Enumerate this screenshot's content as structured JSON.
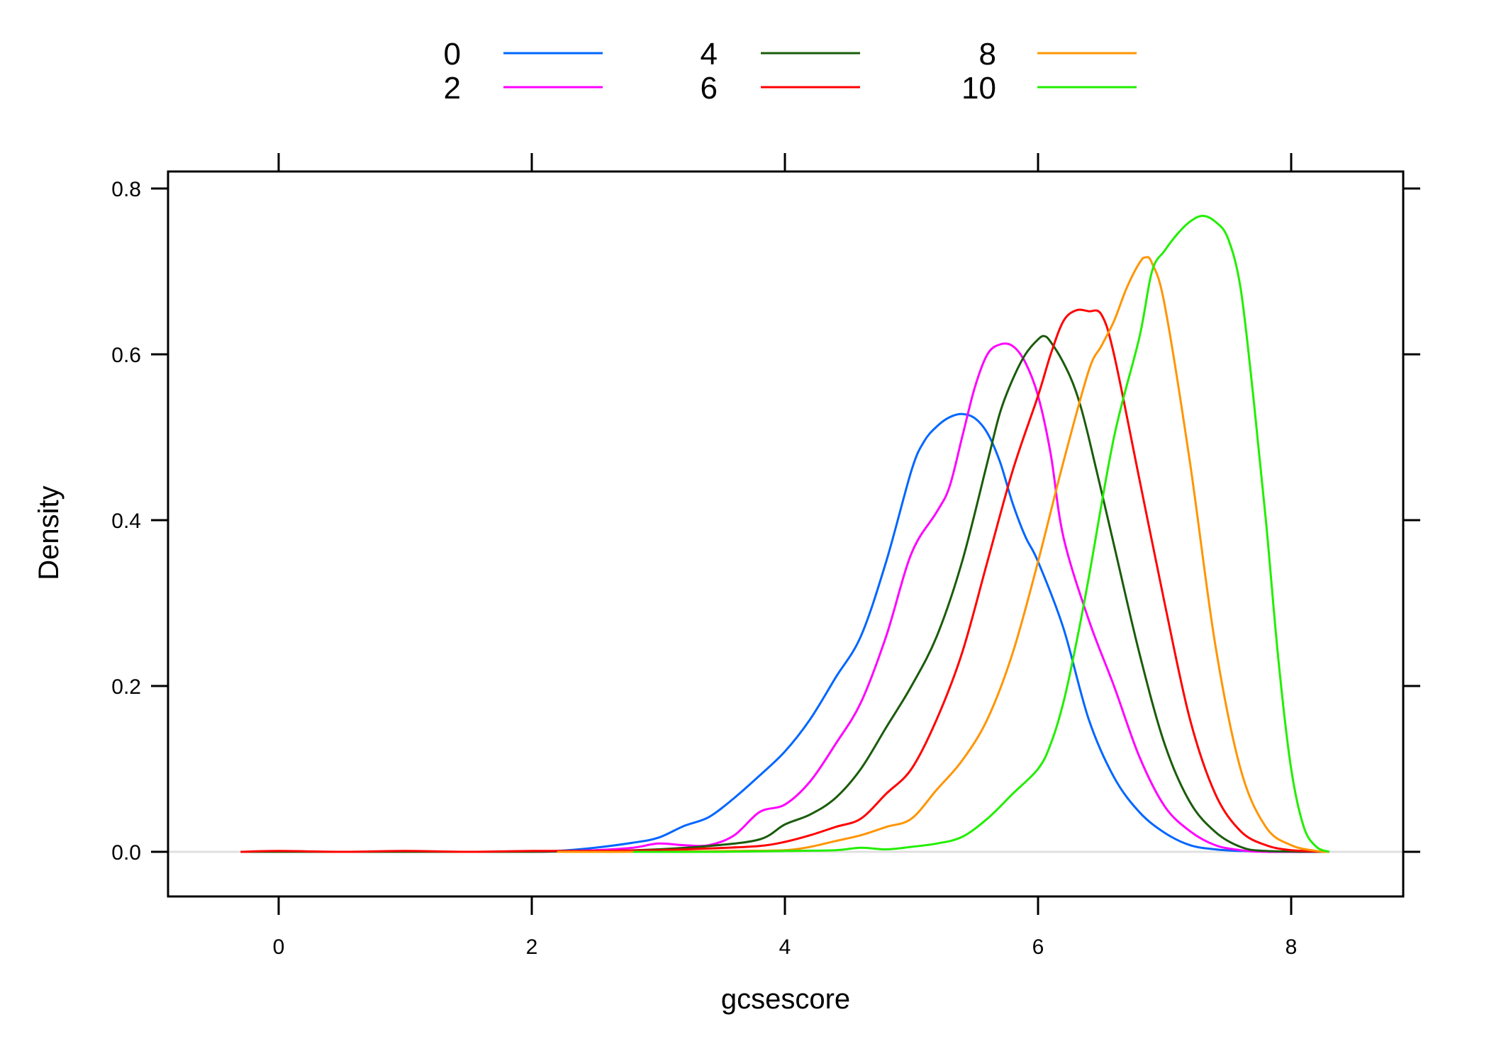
{
  "chart_data": {
    "type": "line",
    "title": "",
    "xlabel": "gcsescore",
    "ylabel": "Density",
    "xlim": [
      -0.9,
      8.8
    ],
    "ylim": [
      -0.055,
      0.84
    ],
    "x_ticks": [
      0,
      2,
      4,
      6,
      8
    ],
    "x_tick_labels": [
      "0",
      "2",
      "4",
      "6",
      "8"
    ],
    "y_ticks": [
      0.0,
      0.2,
      0.4,
      0.6,
      0.8
    ],
    "y_tick_labels": [
      "0.0",
      "0.2",
      "0.4",
      "0.6",
      "0.8"
    ],
    "grid": false,
    "reference_line": {
      "y": 0,
      "color": "#e0e0e0"
    },
    "legend": {
      "position": "top",
      "columns": 3
    },
    "series": [
      {
        "name": "0",
        "color": "#0066ff",
        "x": [
          -0.3,
          0.5,
          1.0,
          1.5,
          2.0,
          2.2,
          2.5,
          2.8,
          3.0,
          3.2,
          3.4,
          3.6,
          3.8,
          4.0,
          4.2,
          4.4,
          4.6,
          4.8,
          5.0,
          5.1,
          5.2,
          5.3,
          5.4,
          5.5,
          5.6,
          5.7,
          5.8,
          5.9,
          6.0,
          6.2,
          6.4,
          6.6,
          6.8,
          7.0,
          7.2,
          7.4,
          7.6,
          8.0,
          8.3
        ],
        "y": [
          0.0,
          0.0,
          0.0,
          0.0,
          0.0,
          0.001,
          0.005,
          0.011,
          0.017,
          0.031,
          0.042,
          0.065,
          0.092,
          0.121,
          0.16,
          0.21,
          0.26,
          0.35,
          0.46,
          0.495,
          0.513,
          0.524,
          0.528,
          0.523,
          0.505,
          0.47,
          0.42,
          0.38,
          0.35,
          0.27,
          0.16,
          0.09,
          0.048,
          0.023,
          0.008,
          0.003,
          0.001,
          0.0,
          0.0
        ]
      },
      {
        "name": "2",
        "color": "#ff00ff",
        "x": [
          -0.3,
          1.0,
          2.0,
          2.5,
          2.8,
          3.0,
          3.2,
          3.4,
          3.6,
          3.8,
          4.0,
          4.2,
          4.4,
          4.6,
          4.8,
          5.0,
          5.2,
          5.3,
          5.4,
          5.5,
          5.6,
          5.7,
          5.8,
          5.9,
          6.0,
          6.1,
          6.2,
          6.4,
          6.6,
          6.8,
          7.0,
          7.2,
          7.4,
          7.6,
          7.8,
          8.3
        ],
        "y": [
          0.0,
          0.0,
          0.0,
          0.002,
          0.005,
          0.01,
          0.008,
          0.008,
          0.02,
          0.048,
          0.057,
          0.085,
          0.13,
          0.18,
          0.26,
          0.36,
          0.41,
          0.44,
          0.5,
          0.56,
          0.6,
          0.612,
          0.61,
          0.59,
          0.55,
          0.48,
          0.38,
          0.28,
          0.2,
          0.115,
          0.055,
          0.025,
          0.008,
          0.002,
          0.0,
          0.0
        ]
      },
      {
        "name": "4",
        "color": "#1a5c0a",
        "x": [
          -0.3,
          1.0,
          2.0,
          2.6,
          3.0,
          3.4,
          3.8,
          4.0,
          4.2,
          4.4,
          4.6,
          4.8,
          5.0,
          5.2,
          5.4,
          5.6,
          5.7,
          5.8,
          5.9,
          6.0,
          6.05,
          6.1,
          6.2,
          6.3,
          6.4,
          6.6,
          6.8,
          7.0,
          7.2,
          7.4,
          7.6,
          7.8,
          8.3
        ],
        "y": [
          0.0,
          0.0,
          0.0,
          0.001,
          0.003,
          0.007,
          0.015,
          0.033,
          0.045,
          0.065,
          0.1,
          0.15,
          0.2,
          0.26,
          0.35,
          0.47,
          0.53,
          0.57,
          0.6,
          0.618,
          0.622,
          0.615,
          0.59,
          0.555,
          0.5,
          0.37,
          0.24,
          0.13,
          0.06,
          0.024,
          0.006,
          0.001,
          0.0
        ]
      },
      {
        "name": "6",
        "color": "#ff0000",
        "x": [
          -0.3,
          0.0,
          0.5,
          1.0,
          1.5,
          2.0,
          2.5,
          3.0,
          3.4,
          3.8,
          4.0,
          4.2,
          4.4,
          4.6,
          4.8,
          5.0,
          5.2,
          5.4,
          5.6,
          5.8,
          6.0,
          6.1,
          6.2,
          6.3,
          6.4,
          6.5,
          6.6,
          6.8,
          7.0,
          7.2,
          7.4,
          7.6,
          7.8,
          8.0,
          8.3
        ],
        "y": [
          0.0,
          0.001,
          0.0,
          0.001,
          0.0,
          0.001,
          0.001,
          0.002,
          0.004,
          0.007,
          0.012,
          0.02,
          0.03,
          0.04,
          0.07,
          0.1,
          0.16,
          0.24,
          0.35,
          0.46,
          0.55,
          0.6,
          0.64,
          0.653,
          0.652,
          0.648,
          0.6,
          0.45,
          0.3,
          0.16,
          0.07,
          0.025,
          0.008,
          0.002,
          0.0
        ]
      },
      {
        "name": "8",
        "color": "#ff9500",
        "x": [
          2.2,
          3.0,
          3.6,
          4.0,
          4.2,
          4.4,
          4.6,
          4.8,
          5.0,
          5.2,
          5.4,
          5.6,
          5.8,
          6.0,
          6.2,
          6.4,
          6.5,
          6.6,
          6.7,
          6.8,
          6.85,
          6.9,
          7.0,
          7.2,
          7.4,
          7.6,
          7.8,
          8.0,
          8.2,
          8.3
        ],
        "y": [
          0.0,
          0.0,
          0.001,
          0.002,
          0.006,
          0.013,
          0.02,
          0.03,
          0.04,
          0.075,
          0.11,
          0.16,
          0.24,
          0.35,
          0.47,
          0.58,
          0.61,
          0.64,
          0.68,
          0.71,
          0.717,
          0.71,
          0.66,
          0.47,
          0.25,
          0.1,
          0.03,
          0.008,
          0.001,
          0.0
        ]
      },
      {
        "name": "10",
        "color": "#22ee00",
        "x": [
          2.8,
          3.5,
          4.0,
          4.4,
          4.6,
          4.8,
          5.0,
          5.2,
          5.4,
          5.6,
          5.8,
          6.0,
          6.1,
          6.2,
          6.3,
          6.4,
          6.6,
          6.8,
          6.9,
          7.0,
          7.1,
          7.2,
          7.3,
          7.4,
          7.5,
          7.6,
          7.7,
          7.8,
          7.9,
          8.0,
          8.1,
          8.2,
          8.3
        ],
        "y": [
          0.0,
          0.0,
          0.001,
          0.002,
          0.005,
          0.003,
          0.006,
          0.01,
          0.018,
          0.04,
          0.07,
          0.1,
          0.13,
          0.18,
          0.25,
          0.33,
          0.5,
          0.62,
          0.7,
          0.725,
          0.745,
          0.76,
          0.767,
          0.76,
          0.74,
          0.68,
          0.55,
          0.4,
          0.23,
          0.1,
          0.03,
          0.006,
          0.0
        ]
      }
    ]
  }
}
